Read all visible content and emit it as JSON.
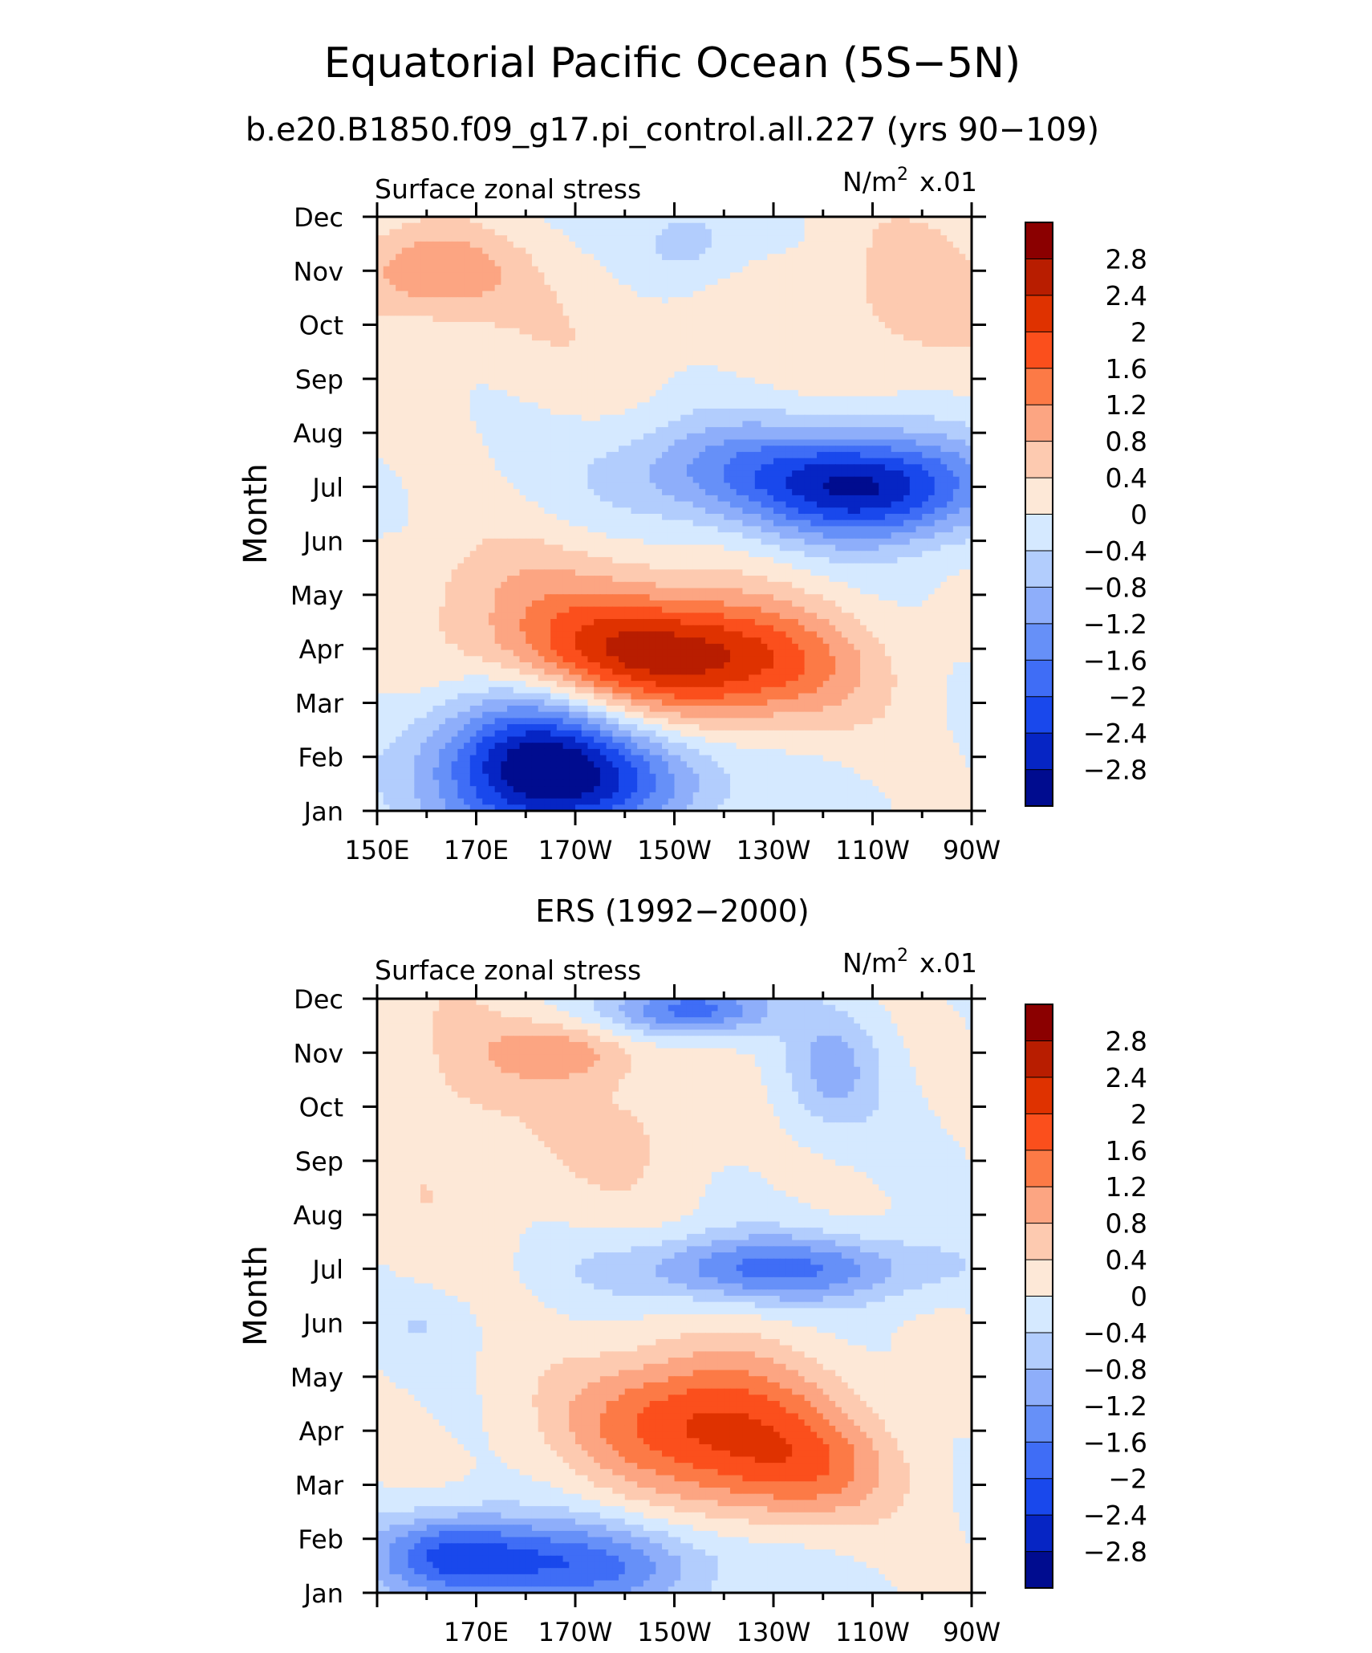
{
  "chart_data": {
    "type": "heatmap",
    "title": "Equatorial Pacific Ocean (5S−5N)",
    "subtitle": "b.e20.B1850.f09_g17.pi_control.all.227 (yrs 90−109)",
    "colorbar": {
      "levels": [
        "2.8",
        "2.4",
        "2",
        "1.6",
        "1.2",
        "0.8",
        "0.4",
        "0",
        "−0.4",
        "−0.8",
        "−1.2",
        "−1.6",
        "−2",
        "−2.4",
        "−2.8"
      ],
      "colors": [
        "#8b0000",
        "#b81d00",
        "#df3200",
        "#fb4f1c",
        "#fc7a46",
        "#fca582",
        "#fdcab0",
        "#fde8d7",
        "#d5e9ff",
        "#b2cdfd",
        "#8eaefa",
        "#6690f8",
        "#3f6df6",
        "#1948ec",
        "#0625c4",
        "#000c8f"
      ]
    },
    "panels": [
      {
        "name": "model",
        "title": "",
        "left_label": "Surface zonal stress",
        "right_label_prefix": "N/m",
        "right_label_exp": "2",
        "right_label_suffix": "x.01",
        "ylabel": "Month",
        "xticks": [
          "150E",
          "170E",
          "170W",
          "150W",
          "130W",
          "110W",
          "90W"
        ],
        "yticks": [
          "Jan",
          "Feb",
          "Mar",
          "Apr",
          "May",
          "Jun",
          "Jul",
          "Aug",
          "Sep",
          "Oct",
          "Nov",
          "Dec"
        ],
        "x_range": [
          150,
          270
        ],
        "y_range": [
          1,
          12
        ],
        "anomalies": [
          {
            "lon": 180,
            "month": 1.8,
            "amp": -2.7,
            "slon": 14,
            "smon": 1.0
          },
          {
            "lon": 200,
            "month": 1.6,
            "amp": -1.3,
            "slon": 16,
            "smon": 0.7
          },
          {
            "lon": 203,
            "month": 4.0,
            "amp": 2.2,
            "slon": 22,
            "smon": 0.75
          },
          {
            "lon": 225,
            "month": 3.5,
            "amp": 1.1,
            "slon": 18,
            "smon": 0.8
          },
          {
            "lon": 180,
            "month": 5.3,
            "amp": 0.5,
            "slon": 22,
            "smon": 0.7
          },
          {
            "lon": 250,
            "month": 7.0,
            "amp": -2.8,
            "slon": 16,
            "smon": 0.7
          },
          {
            "lon": 218,
            "month": 7.3,
            "amp": -1.2,
            "slon": 16,
            "smon": 0.7
          },
          {
            "lon": 212,
            "month": 11.5,
            "amp": -0.7,
            "slon": 8,
            "smon": 0.6
          },
          {
            "lon": 160,
            "month": 11.0,
            "amp": 1.1,
            "slon": 12,
            "smon": 0.6
          },
          {
            "lon": 258,
            "month": 10.5,
            "amp": 0.6,
            "slon": 14,
            "smon": 1.2
          },
          {
            "lon": 190,
            "month": 10.0,
            "amp": 0.3,
            "slon": 25,
            "smon": 1.0
          }
        ]
      },
      {
        "name": "obs",
        "title": "ERS (1992−2000)",
        "left_label": "Surface zonal stress",
        "right_label_prefix": "N/m",
        "right_label_exp": "2",
        "right_label_suffix": "x.01",
        "ylabel": "Month",
        "xticks": [
          "170E",
          "170W",
          "150W",
          "130W",
          "110W",
          "90W"
        ],
        "yticks": [
          "Jan",
          "Feb",
          "Mar",
          "Apr",
          "May",
          "Jun",
          "Jul",
          "Aug",
          "Sep",
          "Oct",
          "Nov",
          "Dec"
        ],
        "x_range": [
          150,
          270
        ],
        "y_range": [
          1,
          12
        ],
        "anomalies": [
          {
            "lon": 185,
            "month": 1.5,
            "amp": -1.9,
            "slon": 22,
            "smon": 0.6
          },
          {
            "lon": 165,
            "month": 1.8,
            "amp": -1.2,
            "slon": 10,
            "smon": 0.5
          },
          {
            "lon": 215,
            "month": 4.2,
            "amp": 2.0,
            "slon": 18,
            "smon": 0.9
          },
          {
            "lon": 235,
            "month": 3.2,
            "amp": 1.2,
            "slon": 14,
            "smon": 0.7
          },
          {
            "lon": 230,
            "month": 7.0,
            "amp": -1.7,
            "slon": 22,
            "smon": 0.45
          },
          {
            "lon": 213,
            "month": 11.8,
            "amp": -1.9,
            "slon": 11,
            "smon": 0.35
          },
          {
            "lon": 242,
            "month": 10.7,
            "amp": -0.9,
            "slon": 7,
            "smon": 0.8
          },
          {
            "lon": 187,
            "month": 11.0,
            "amp": 1.0,
            "slon": 10,
            "smon": 0.4
          },
          {
            "lon": 165,
            "month": 10.0,
            "amp": 0.45,
            "slon": 12,
            "smon": 2.2
          },
          {
            "lon": 200,
            "month": 9.5,
            "amp": 0.5,
            "slon": 12,
            "smon": 1.0
          },
          {
            "lon": 160,
            "month": 6.0,
            "amp": -0.4,
            "slon": 8,
            "smon": 0.5
          }
        ]
      }
    ]
  }
}
